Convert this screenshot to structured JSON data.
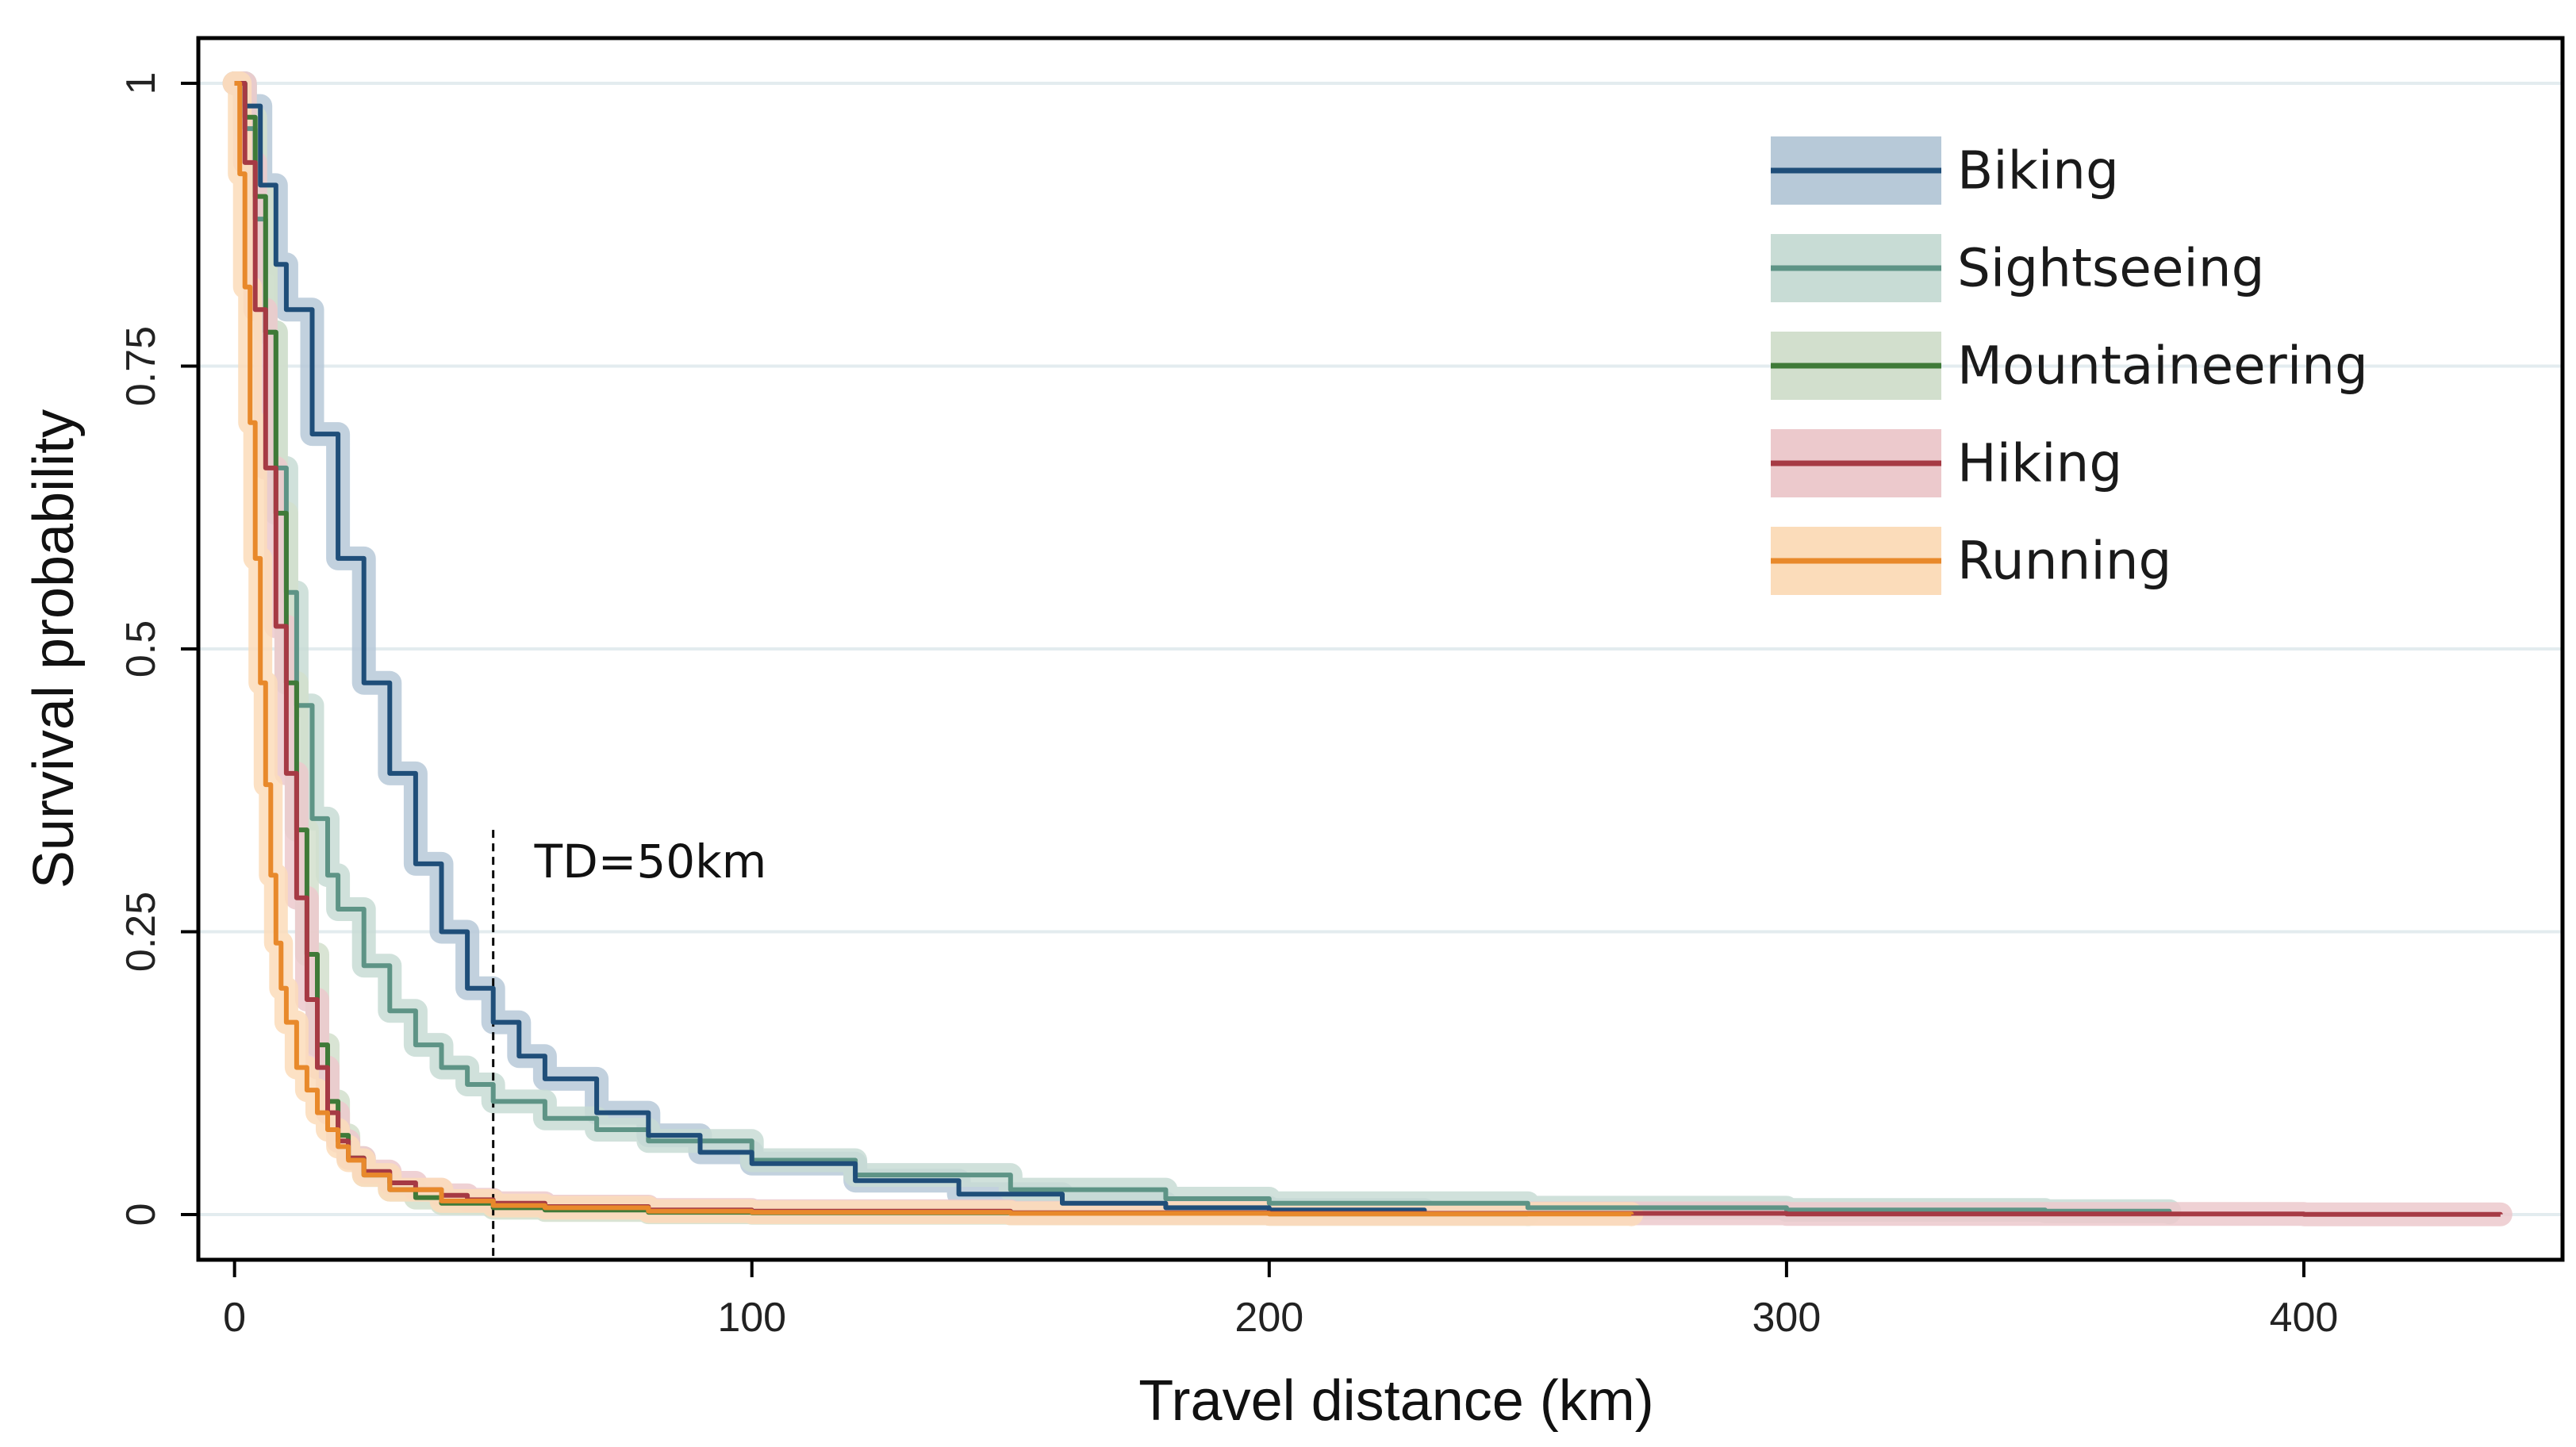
{
  "chart_data": {
    "type": "line",
    "title": "",
    "xlabel": "Travel distance (km)",
    "ylabel": "Survival probability",
    "xlim": [
      -7,
      450
    ],
    "ylim": [
      -0.04,
      1.04
    ],
    "x_ticks": [
      0,
      100,
      200,
      300,
      400
    ],
    "x_tick_labels": [
      "0",
      "100",
      "200",
      "300",
      "400"
    ],
    "y_ticks": [
      0,
      0.25,
      0.5,
      0.75,
      1
    ],
    "y_tick_labels": [
      "0",
      "0.25",
      "0.5",
      "0.75",
      "1"
    ],
    "grid": "horizontal",
    "legend_position": "top-right",
    "annotation": {
      "label": "TD=50km",
      "x": 50,
      "y_top": 0.34
    },
    "series": [
      {
        "name": "Biking",
        "color": "#1f4e79",
        "band_color": "#b7c9d8",
        "x": [
          0,
          2,
          5,
          8,
          10,
          15,
          20,
          25,
          30,
          35,
          40,
          45,
          50,
          55,
          60,
          70,
          80,
          90,
          100,
          120,
          140,
          160,
          180,
          200,
          230
        ],
        "y": [
          1.0,
          0.98,
          0.91,
          0.84,
          0.8,
          0.69,
          0.58,
          0.47,
          0.39,
          0.31,
          0.25,
          0.2,
          0.17,
          0.14,
          0.12,
          0.09,
          0.07,
          0.055,
          0.045,
          0.03,
          0.018,
          0.01,
          0.006,
          0.004,
          0.002
        ]
      },
      {
        "name": "Sightseeing",
        "color": "#5e9486",
        "band_color": "#c8dcd5",
        "x": [
          0,
          2,
          4,
          6,
          8,
          10,
          12,
          15,
          18,
          20,
          25,
          30,
          35,
          40,
          45,
          50,
          60,
          70,
          80,
          100,
          120,
          150,
          180,
          200,
          250,
          300,
          350,
          374
        ],
        "y": [
          1.0,
          0.96,
          0.88,
          0.78,
          0.66,
          0.55,
          0.45,
          0.35,
          0.3,
          0.27,
          0.22,
          0.18,
          0.15,
          0.13,
          0.115,
          0.1,
          0.085,
          0.075,
          0.065,
          0.048,
          0.035,
          0.022,
          0.014,
          0.01,
          0.006,
          0.004,
          0.003,
          0.002
        ]
      },
      {
        "name": "Mountaineering",
        "color": "#3f7a38",
        "band_color": "#d2dfcd",
        "x": [
          0,
          2,
          4,
          6,
          8,
          10,
          12,
          14,
          16,
          18,
          20,
          22,
          25,
          30,
          35,
          40,
          50,
          60,
          80,
          100,
          150,
          200,
          250
        ],
        "y": [
          1.0,
          0.97,
          0.9,
          0.78,
          0.62,
          0.47,
          0.34,
          0.23,
          0.15,
          0.1,
          0.07,
          0.05,
          0.035,
          0.022,
          0.015,
          0.01,
          0.006,
          0.004,
          0.002,
          0.0015,
          0.001,
          0.0006,
          0.0003
        ]
      },
      {
        "name": "Hiking",
        "color": "#a63a44",
        "band_color": "#ecc9cc",
        "x": [
          0,
          2,
          4,
          6,
          8,
          10,
          12,
          14,
          16,
          18,
          20,
          22,
          25,
          30,
          35,
          40,
          45,
          50,
          60,
          80,
          100,
          150,
          200,
          300,
          400,
          438
        ],
        "y": [
          1.0,
          0.93,
          0.8,
          0.66,
          0.52,
          0.39,
          0.28,
          0.19,
          0.13,
          0.09,
          0.065,
          0.05,
          0.038,
          0.028,
          0.022,
          0.017,
          0.013,
          0.01,
          0.007,
          0.004,
          0.003,
          0.0015,
          0.001,
          0.0005,
          0.0002,
          0.0001
        ]
      },
      {
        "name": "Running",
        "color": "#e8892b",
        "band_color": "#fbdcba",
        "x": [
          0,
          1,
          2,
          3,
          4,
          5,
          6,
          7,
          8,
          9,
          10,
          12,
          14,
          16,
          18,
          20,
          22,
          25,
          30,
          40,
          50,
          60,
          80,
          100,
          150,
          200,
          270
        ],
        "y": [
          1.0,
          0.92,
          0.82,
          0.7,
          0.58,
          0.47,
          0.38,
          0.3,
          0.24,
          0.2,
          0.17,
          0.13,
          0.11,
          0.09,
          0.075,
          0.06,
          0.048,
          0.035,
          0.022,
          0.012,
          0.008,
          0.006,
          0.003,
          0.002,
          0.001,
          0.0005,
          0.0002
        ]
      }
    ]
  }
}
